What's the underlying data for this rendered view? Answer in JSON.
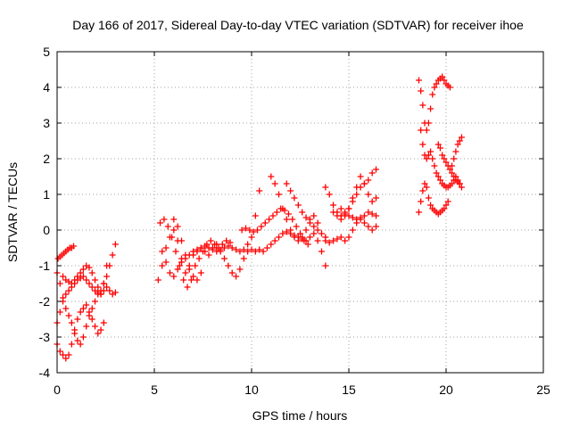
{
  "chart_data": {
    "type": "scatter",
    "title": "Day 166 of 2017, Sidereal Day-to-day VTEC variation (SDTVAR) for receiver ihoe",
    "xlabel": "GPS time / hours",
    "ylabel": "SDTVAR / TECUs",
    "xlim": [
      0,
      25
    ],
    "ylim": [
      -4,
      5
    ],
    "xticks": [
      "0",
      "5",
      "10",
      "15",
      "20",
      "25"
    ],
    "yticks": [
      "-4",
      "-3",
      "-2",
      "-1",
      "0",
      "1",
      "2",
      "3",
      "4",
      "5"
    ],
    "grid": true,
    "marker": "plus",
    "color": "#ff0000",
    "series": [
      {
        "x": [
          0.0,
          0.15,
          0.3,
          0.45,
          0.6,
          0.75,
          0.9,
          1.05,
          1.2,
          1.35,
          1.5,
          1.65,
          1.8,
          1.95,
          2.1,
          2.25,
          2.4,
          2.55,
          2.7,
          2.85,
          3.0
        ],
        "y": [
          -1.2,
          -1.5,
          -1.9,
          -2.2,
          -2.4,
          -2.6,
          -2.9,
          -3.1,
          -3.2,
          -3.0,
          -2.7,
          -2.4,
          -2.2,
          -2.0,
          -1.8,
          -1.7,
          -1.5,
          -1.3,
          -1.0,
          -0.7,
          -0.4
        ]
      },
      {
        "x": [
          0.0,
          0.15,
          0.3,
          0.45,
          0.6,
          0.75,
          0.9,
          1.05,
          1.2,
          1.35,
          1.5,
          1.65,
          1.8,
          1.95,
          2.1,
          2.25,
          2.4
        ],
        "y": [
          -3.2,
          -3.4,
          -3.5,
          -3.6,
          -3.5,
          -3.2,
          -2.8,
          -2.5,
          -2.3,
          -2.2,
          -2.1,
          -2.3,
          -2.5,
          -2.7,
          -2.9,
          -2.8,
          -2.6
        ]
      },
      {
        "x": [
          0.0,
          0.15,
          0.3,
          0.45,
          0.6,
          0.75,
          0.9,
          1.05,
          1.2,
          1.35,
          1.5,
          1.65,
          1.8,
          1.95,
          2.1,
          2.25,
          2.4,
          2.55,
          2.7,
          2.85,
          3.0
        ],
        "y": [
          -2.6,
          -2.3,
          -2.0,
          -1.8,
          -1.7,
          -1.6,
          -1.5,
          -1.4,
          -1.35,
          -1.3,
          -1.4,
          -1.5,
          -1.6,
          -1.7,
          -1.75,
          -1.8,
          -1.7,
          -1.6,
          -1.7,
          -1.8,
          -1.75
        ]
      },
      {
        "x": [
          0.05,
          0.15,
          0.25,
          0.35,
          0.45,
          0.55,
          0.65,
          0.75,
          0.85
        ],
        "y": [
          -0.8,
          -0.75,
          -0.7,
          -0.65,
          -0.6,
          -0.55,
          -0.5,
          -0.5,
          -0.45
        ]
      },
      {
        "x": [
          0.3,
          0.45,
          0.6,
          0.75,
          0.9,
          1.05,
          1.2,
          1.35,
          1.5,
          1.65,
          1.8,
          1.95,
          2.1,
          2.25,
          2.4,
          2.55
        ],
        "y": [
          -1.3,
          -1.4,
          -1.45,
          -1.5,
          -1.4,
          -1.3,
          -1.2,
          -1.1,
          -1.0,
          -1.05,
          -1.2,
          -1.4,
          -1.6,
          -1.8,
          -1.5,
          -1.0
        ]
      },
      {
        "x": [
          5.2,
          5.4,
          5.6,
          5.8,
          6.0,
          6.2,
          6.4,
          6.6,
          6.8,
          7.0,
          7.2,
          7.4,
          7.6,
          7.8,
          8.0,
          8.2,
          8.4,
          8.6,
          8.8,
          9.0,
          9.2,
          9.4,
          9.6
        ],
        "y": [
          -1.4,
          -1.0,
          -0.5,
          -0.2,
          0.0,
          -0.3,
          -0.8,
          -1.2,
          -1.0,
          -0.7,
          -0.6,
          -0.5,
          -0.6,
          -0.7,
          -0.5,
          -0.4,
          -0.6,
          -0.8,
          -1.0,
          -1.2,
          -1.3,
          -1.1,
          -0.8
        ]
      },
      {
        "x": [
          5.3,
          5.5,
          5.7,
          5.9,
          6.1,
          6.3,
          6.5,
          6.7,
          6.9,
          7.1,
          7.3,
          7.5,
          7.7,
          7.9,
          8.1,
          8.3,
          8.5,
          8.7,
          8.9
        ],
        "y": [
          0.2,
          0.3,
          0.1,
          -0.2,
          -0.6,
          -1.0,
          -1.4,
          -1.6,
          -1.4,
          -1.0,
          -0.8,
          -0.6,
          -0.4,
          -0.3,
          -0.4,
          -0.5,
          -0.4,
          -0.3,
          -0.35
        ]
      },
      {
        "x": [
          5.4,
          5.6,
          5.8,
          6.0,
          6.2,
          6.4,
          6.6,
          6.8,
          7.0,
          7.2,
          7.4,
          7.6,
          7.8,
          8.0,
          8.2,
          8.4,
          8.6,
          8.8,
          9.0,
          9.2,
          9.4,
          9.6,
          9.8,
          10.0,
          10.2,
          10.4
        ],
        "y": [
          -0.6,
          -0.9,
          -1.2,
          -1.3,
          -1.1,
          -0.9,
          -0.8,
          -0.7,
          -0.6,
          -0.55,
          -0.5,
          -0.45,
          -0.5,
          -0.55,
          -0.6,
          -0.55,
          -0.5,
          -0.45,
          -0.5,
          -0.55,
          -0.6,
          -0.55,
          -0.4,
          -0.2,
          0.4,
          1.1
        ]
      },
      {
        "x": [
          6.0,
          6.2,
          6.4,
          6.6,
          6.8,
          7.0,
          7.2,
          7.4
        ],
        "y": [
          0.3,
          0.1,
          -0.3,
          -0.7,
          -1.1,
          -1.3,
          -1.4,
          -1.2
        ]
      },
      {
        "x": [
          9.8,
          10.0,
          10.2,
          10.4,
          10.6,
          10.8,
          11.0,
          11.2,
          11.4,
          11.6,
          11.8,
          12.0,
          12.2,
          12.4,
          12.6,
          12.8,
          13.0,
          13.2,
          13.4,
          13.6,
          13.8
        ],
        "y": [
          -0.6,
          -0.55,
          -0.6,
          -0.55,
          -0.6,
          -0.5,
          -0.4,
          -0.3,
          -0.2,
          -0.1,
          -0.05,
          -0.1,
          -0.15,
          -0.2,
          -0.25,
          -0.3,
          -0.2,
          -0.1,
          -0.3,
          -0.6,
          -1.0
        ]
      },
      {
        "x": [
          9.5,
          9.7,
          9.9,
          10.1,
          10.3,
          10.5,
          10.7,
          10.9,
          11.1,
          11.3,
          11.5,
          11.7,
          11.9,
          12.1,
          12.3,
          12.5,
          12.7,
          12.9
        ],
        "y": [
          0.0,
          0.05,
          0.0,
          -0.05,
          0.0,
          0.1,
          0.2,
          0.3,
          0.4,
          0.5,
          0.6,
          0.55,
          0.45,
          0.3,
          0.1,
          -0.1,
          -0.3,
          -0.4
        ]
      },
      {
        "x": [
          11.0,
          11.2,
          11.4,
          11.6,
          11.8,
          12.0,
          12.2,
          12.4,
          12.6,
          12.8,
          13.0,
          13.2,
          13.4
        ],
        "y": [
          1.5,
          1.3,
          1.0,
          0.6,
          0.3,
          0.0,
          -0.2,
          -0.3,
          -0.2,
          0.0,
          0.3,
          0.4,
          0.2
        ]
      },
      {
        "x": [
          11.8,
          12.0,
          12.2,
          12.4,
          12.6,
          12.8,
          13.0,
          13.2,
          13.4,
          13.6,
          13.8
        ],
        "y": [
          1.3,
          1.1,
          0.9,
          0.7,
          0.5,
          0.35,
          0.2,
          0.1,
          0.0,
          -0.1,
          -0.2
        ]
      },
      {
        "x": [
          13.8,
          14.0,
          14.2,
          14.4,
          14.6,
          14.8,
          15.0,
          15.2,
          15.4,
          15.6,
          15.8,
          16.0,
          16.2,
          16.4
        ],
        "y": [
          -0.3,
          -0.35,
          -0.3,
          -0.25,
          -0.2,
          -0.3,
          -0.2,
          0.0,
          0.2,
          0.3,
          0.2,
          0.1,
          0.0,
          0.1
        ]
      },
      {
        "x": [
          13.8,
          14.0,
          14.2,
          14.4,
          14.6,
          14.8,
          15.0,
          15.2,
          15.4,
          15.6,
          15.8,
          16.0,
          16.2,
          16.4
        ],
        "y": [
          1.2,
          1.0,
          0.7,
          0.5,
          0.4,
          0.45,
          0.6,
          0.8,
          1.0,
          1.2,
          1.3,
          1.4,
          1.6,
          1.7
        ]
      },
      {
        "x": [
          14.2,
          14.4,
          14.6,
          14.8,
          15.0,
          15.2,
          15.4,
          15.6,
          15.8,
          16.0,
          16.2,
          16.4
        ],
        "y": [
          0.5,
          0.4,
          0.3,
          0.4,
          0.6,
          0.9,
          1.2,
          1.5,
          1.3,
          1.0,
          0.8,
          0.9
        ]
      },
      {
        "x": [
          14.6,
          14.8,
          15.0,
          15.2,
          15.4,
          15.6,
          15.8,
          16.0,
          16.2,
          16.4
        ],
        "y": [
          0.6,
          0.5,
          0.4,
          0.35,
          0.3,
          0.35,
          0.4,
          0.5,
          0.45,
          0.4
        ]
      },
      {
        "x": [
          18.6,
          18.7,
          18.8,
          18.9,
          19.0,
          19.1,
          19.2,
          19.3,
          19.4,
          19.5,
          19.6,
          19.7,
          19.8,
          19.9,
          20.0,
          20.1,
          20.2
        ],
        "y": [
          4.2,
          3.9,
          3.5,
          3.0,
          2.8,
          3.0,
          3.4,
          3.8,
          4.0,
          4.1,
          4.2,
          4.25,
          4.3,
          4.2,
          4.1,
          4.05,
          4.0
        ]
      },
      {
        "x": [
          18.7,
          18.8,
          18.9,
          19.0,
          19.1,
          19.2,
          19.3,
          19.4,
          19.5,
          19.6,
          19.7,
          19.8,
          19.9,
          20.0,
          20.1,
          20.2,
          20.3,
          20.4,
          20.5,
          20.6,
          20.7
        ],
        "y": [
          2.8,
          2.4,
          2.1,
          2.0,
          2.1,
          2.2,
          2.0,
          1.8,
          1.6,
          1.5,
          1.4,
          1.3,
          1.25,
          1.2,
          1.2,
          1.25,
          1.3,
          1.4,
          1.5,
          1.4,
          1.3
        ]
      },
      {
        "x": [
          18.6,
          18.7,
          18.8,
          18.9,
          19.0,
          19.1,
          19.2,
          19.3,
          19.4,
          19.5,
          19.6,
          19.7,
          19.8,
          19.9,
          20.0,
          20.1
        ],
        "y": [
          0.5,
          0.8,
          1.1,
          1.3,
          1.2,
          0.9,
          0.7,
          0.6,
          0.55,
          0.5,
          0.45,
          0.5,
          0.55,
          0.6,
          0.7,
          0.8
        ]
      },
      {
        "x": [
          19.6,
          19.7,
          19.8,
          19.9,
          20.0,
          20.1,
          20.2,
          20.3,
          20.4,
          20.5,
          20.6,
          20.7,
          20.8
        ],
        "y": [
          2.4,
          2.3,
          2.1,
          2.0,
          1.9,
          1.8,
          1.7,
          1.6,
          1.5,
          1.4,
          1.35,
          1.3,
          1.2
        ]
      },
      {
        "x": [
          20.3,
          20.4,
          20.5,
          20.6,
          20.7,
          20.8
        ],
        "y": [
          1.8,
          2.0,
          2.2,
          2.4,
          2.5,
          2.6
        ]
      }
    ]
  }
}
